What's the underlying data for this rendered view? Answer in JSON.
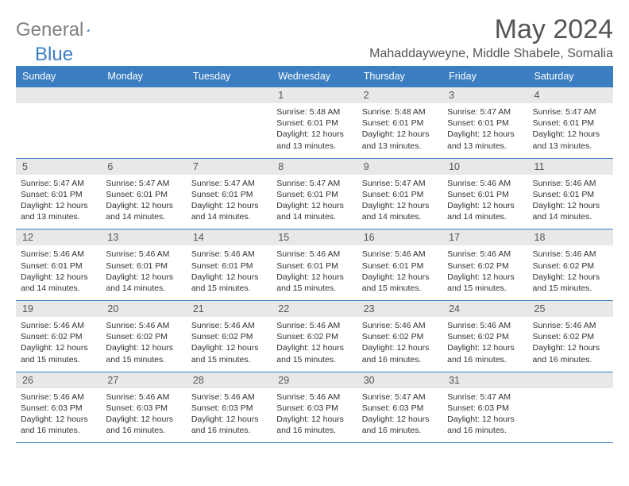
{
  "logo": {
    "general": "General",
    "blue": "Blue"
  },
  "title": "May 2024",
  "location": "Mahaddayweyne, Middle Shabele, Somalia",
  "colors": {
    "headerBg": "#3b7ec1",
    "headerText": "#ffffff",
    "dayBandBg": "#e8e8e8",
    "border": "#3b7ec1",
    "background": "#ffffff",
    "textDark": "#333333",
    "textMid": "#555555",
    "logoGray": "#808080",
    "logoBlue": "#3b7ec1"
  },
  "typography": {
    "title_fontsize": 34,
    "location_fontsize": 16,
    "dayheader_fontsize": 12.5,
    "daynum_fontsize": 12.5,
    "details_fontsize": 10.5
  },
  "dayNames": [
    "Sunday",
    "Monday",
    "Tuesday",
    "Wednesday",
    "Thursday",
    "Friday",
    "Saturday"
  ],
  "weeks": [
    [
      null,
      null,
      null,
      {
        "n": "1",
        "sr": "5:48 AM",
        "ss": "6:01 PM",
        "dl": "12 hours and 13 minutes."
      },
      {
        "n": "2",
        "sr": "5:48 AM",
        "ss": "6:01 PM",
        "dl": "12 hours and 13 minutes."
      },
      {
        "n": "3",
        "sr": "5:47 AM",
        "ss": "6:01 PM",
        "dl": "12 hours and 13 minutes."
      },
      {
        "n": "4",
        "sr": "5:47 AM",
        "ss": "6:01 PM",
        "dl": "12 hours and 13 minutes."
      }
    ],
    [
      {
        "n": "5",
        "sr": "5:47 AM",
        "ss": "6:01 PM",
        "dl": "12 hours and 13 minutes."
      },
      {
        "n": "6",
        "sr": "5:47 AM",
        "ss": "6:01 PM",
        "dl": "12 hours and 14 minutes."
      },
      {
        "n": "7",
        "sr": "5:47 AM",
        "ss": "6:01 PM",
        "dl": "12 hours and 14 minutes."
      },
      {
        "n": "8",
        "sr": "5:47 AM",
        "ss": "6:01 PM",
        "dl": "12 hours and 14 minutes."
      },
      {
        "n": "9",
        "sr": "5:47 AM",
        "ss": "6:01 PM",
        "dl": "12 hours and 14 minutes."
      },
      {
        "n": "10",
        "sr": "5:46 AM",
        "ss": "6:01 PM",
        "dl": "12 hours and 14 minutes."
      },
      {
        "n": "11",
        "sr": "5:46 AM",
        "ss": "6:01 PM",
        "dl": "12 hours and 14 minutes."
      }
    ],
    [
      {
        "n": "12",
        "sr": "5:46 AM",
        "ss": "6:01 PM",
        "dl": "12 hours and 14 minutes."
      },
      {
        "n": "13",
        "sr": "5:46 AM",
        "ss": "6:01 PM",
        "dl": "12 hours and 14 minutes."
      },
      {
        "n": "14",
        "sr": "5:46 AM",
        "ss": "6:01 PM",
        "dl": "12 hours and 15 minutes."
      },
      {
        "n": "15",
        "sr": "5:46 AM",
        "ss": "6:01 PM",
        "dl": "12 hours and 15 minutes."
      },
      {
        "n": "16",
        "sr": "5:46 AM",
        "ss": "6:01 PM",
        "dl": "12 hours and 15 minutes."
      },
      {
        "n": "17",
        "sr": "5:46 AM",
        "ss": "6:02 PM",
        "dl": "12 hours and 15 minutes."
      },
      {
        "n": "18",
        "sr": "5:46 AM",
        "ss": "6:02 PM",
        "dl": "12 hours and 15 minutes."
      }
    ],
    [
      {
        "n": "19",
        "sr": "5:46 AM",
        "ss": "6:02 PM",
        "dl": "12 hours and 15 minutes."
      },
      {
        "n": "20",
        "sr": "5:46 AM",
        "ss": "6:02 PM",
        "dl": "12 hours and 15 minutes."
      },
      {
        "n": "21",
        "sr": "5:46 AM",
        "ss": "6:02 PM",
        "dl": "12 hours and 15 minutes."
      },
      {
        "n": "22",
        "sr": "5:46 AM",
        "ss": "6:02 PM",
        "dl": "12 hours and 15 minutes."
      },
      {
        "n": "23",
        "sr": "5:46 AM",
        "ss": "6:02 PM",
        "dl": "12 hours and 16 minutes."
      },
      {
        "n": "24",
        "sr": "5:46 AM",
        "ss": "6:02 PM",
        "dl": "12 hours and 16 minutes."
      },
      {
        "n": "25",
        "sr": "5:46 AM",
        "ss": "6:02 PM",
        "dl": "12 hours and 16 minutes."
      }
    ],
    [
      {
        "n": "26",
        "sr": "5:46 AM",
        "ss": "6:03 PM",
        "dl": "12 hours and 16 minutes."
      },
      {
        "n": "27",
        "sr": "5:46 AM",
        "ss": "6:03 PM",
        "dl": "12 hours and 16 minutes."
      },
      {
        "n": "28",
        "sr": "5:46 AM",
        "ss": "6:03 PM",
        "dl": "12 hours and 16 minutes."
      },
      {
        "n": "29",
        "sr": "5:46 AM",
        "ss": "6:03 PM",
        "dl": "12 hours and 16 minutes."
      },
      {
        "n": "30",
        "sr": "5:47 AM",
        "ss": "6:03 PM",
        "dl": "12 hours and 16 minutes."
      },
      {
        "n": "31",
        "sr": "5:47 AM",
        "ss": "6:03 PM",
        "dl": "12 hours and 16 minutes."
      },
      null
    ]
  ],
  "labels": {
    "sunrise": "Sunrise:",
    "sunset": "Sunset:",
    "daylight": "Daylight:"
  }
}
